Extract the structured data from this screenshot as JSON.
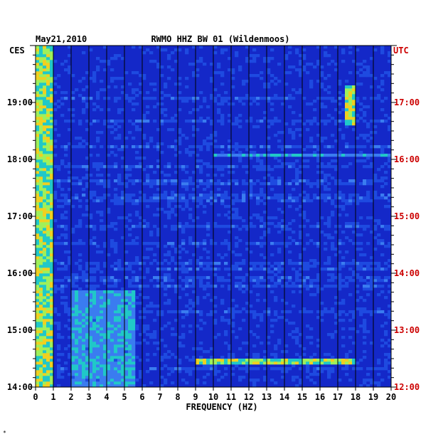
{
  "chart_data": {
    "type": "heatmap",
    "date": "May21,2010",
    "title": "RWMO HHZ BW 01 (Wildenmoos)",
    "left_zone": "CES",
    "right_zone": "UTC",
    "xlabel": "FREQUENCY (HZ)",
    "xlim": [
      0,
      20
    ],
    "x_ticks": [
      "0",
      "1",
      "2",
      "3",
      "4",
      "5",
      "6",
      "7",
      "8",
      "9",
      "10",
      "11",
      "12",
      "13",
      "14",
      "15",
      "16",
      "17",
      "18",
      "19",
      "20"
    ],
    "ylim_local_hours": [
      14,
      20
    ],
    "left_ticks": [
      "19:00",
      "18:00",
      "17:00",
      "16:00",
      "15:00",
      "14:00"
    ],
    "right_ticks": [
      "17:00",
      "16:00",
      "15:00",
      "14:00",
      "13:00",
      "12:00"
    ],
    "grid": true,
    "colors": {
      "background": "#1428c8",
      "low": "#0a1aa8",
      "mid": "#3a7cf0",
      "high": "#9ff05a",
      "peak": "#d41010",
      "left_axis_text": "#000000",
      "right_axis_text": "#cc0000"
    },
    "features": [
      {
        "name": "low-frequency band",
        "x": [
          0,
          1
        ],
        "time": [
          14,
          20
        ],
        "intensity": "high"
      },
      {
        "name": "afternoon broadband activity",
        "x": [
          2,
          5.5
        ],
        "time": [
          14,
          15.7
        ],
        "intensity": "medium"
      },
      {
        "name": "narrow line",
        "x": [
          17.5,
          18
        ],
        "time": [
          18.6,
          19.3
        ],
        "intensity": "high"
      },
      {
        "name": "horizontal band",
        "x": [
          9,
          18
        ],
        "time": [
          14.4,
          14.5
        ],
        "intensity": "high"
      },
      {
        "name": "horizontal band",
        "x": [
          10,
          20
        ],
        "time": [
          18.05,
          18.12
        ],
        "intensity": "medium"
      }
    ]
  },
  "footer_mark": "*"
}
